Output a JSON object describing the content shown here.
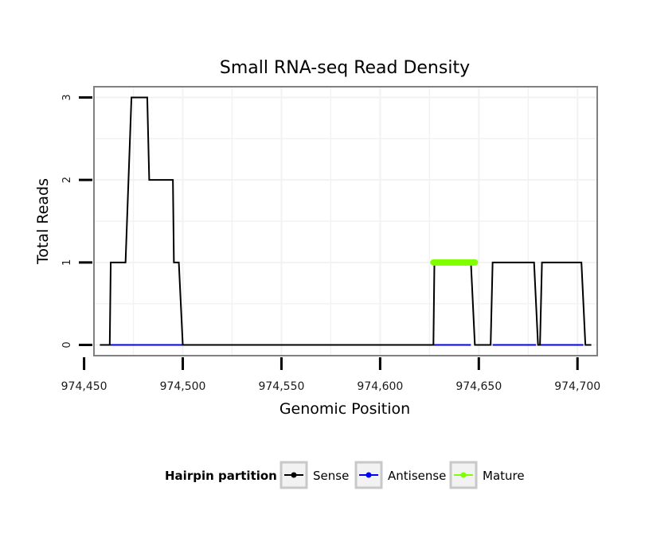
{
  "chart_data": {
    "type": "line",
    "title": "Small RNA-seq Read Density",
    "xlabel": "Genomic Position",
    "ylabel": "Total Reads",
    "xlim": [
      974455,
      974710
    ],
    "ylim": [
      -0.13,
      3.13
    ],
    "x_ticks": [
      974450,
      974500,
      974550,
      974600,
      974650,
      974700
    ],
    "x_tick_labels": [
      "974,450",
      "974,500",
      "974,550",
      "974,600",
      "974,650",
      "974,700"
    ],
    "y_ticks": [
      0,
      1,
      2,
      3
    ],
    "y_tick_labels": [
      "0",
      "1",
      "2",
      "3"
    ],
    "grid": true,
    "legend": {
      "title": "Hairpin partition",
      "position": "bottom",
      "entries": [
        {
          "name": "Sense",
          "color": "#000000"
        },
        {
          "name": "Antisense",
          "color": "#0000ff"
        },
        {
          "name": "Mature",
          "color": "#7fff00"
        }
      ]
    },
    "series": [
      {
        "name": "Sense",
        "color": "#000000",
        "points": [
          [
            974458,
            0
          ],
          [
            974463,
            0
          ],
          [
            974463.5,
            1
          ],
          [
            974471,
            1
          ],
          [
            974472.5,
            2
          ],
          [
            974474,
            3
          ],
          [
            974482,
            3
          ],
          [
            974483,
            2
          ],
          [
            974495,
            2
          ],
          [
            974495.5,
            1
          ],
          [
            974498,
            1
          ],
          [
            974500,
            0
          ],
          [
            974627,
            0
          ],
          [
            974627.5,
            1
          ],
          [
            974646,
            1
          ],
          [
            974648,
            0
          ],
          [
            974656,
            0
          ],
          [
            974657,
            1
          ],
          [
            974678,
            1
          ],
          [
            974680,
            0
          ],
          [
            974681,
            0
          ],
          [
            974682,
            1
          ],
          [
            974702,
            1
          ],
          [
            974704,
            0
          ],
          [
            974707,
            0
          ]
        ]
      },
      {
        "name": "Antisense",
        "color": "#0000ff",
        "segments": [
          [
            974463,
            974500
          ],
          [
            974627,
            974646
          ],
          [
            974657,
            974679
          ],
          [
            974681,
            974703
          ]
        ],
        "value": 0
      },
      {
        "name": "Mature",
        "color": "#7fff00",
        "segments": [
          [
            974627,
            974648
          ]
        ],
        "value": 1
      }
    ]
  }
}
